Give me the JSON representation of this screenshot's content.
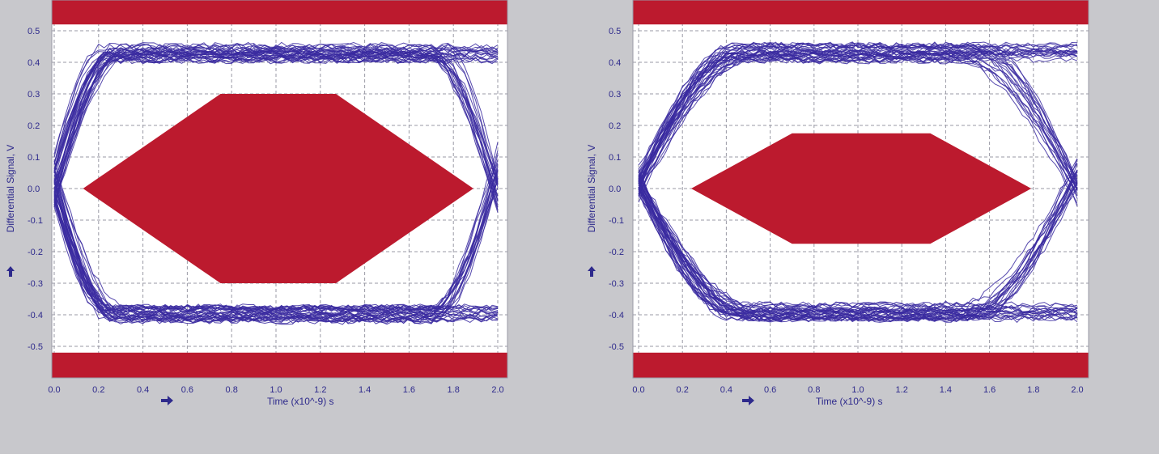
{
  "colors": {
    "panel_bg": "#c8c8cc",
    "plot_bg": "#ffffff",
    "grid": "#9a9aa6",
    "axis_text": "#2e2a8c",
    "trace": "#3a2aa0",
    "mask": "#bc1a2e"
  },
  "icons": {
    "x_marker": "arrow-right-icon",
    "y_marker": "arrow-up-icon"
  },
  "chart_data": [
    {
      "type": "eye-diagram",
      "xlabel": "Time  (x10^-9) s",
      "ylabel": "Differential Signal, V",
      "xlim": [
        0.0,
        2.0
      ],
      "ylim": [
        -0.55,
        0.55
      ],
      "x_ticks": [
        "0.0",
        "0.2",
        "0.4",
        "0.6",
        "0.8",
        "1.0",
        "1.2",
        "1.4",
        "1.6",
        "1.8",
        "2.0"
      ],
      "y_ticks": [
        "0.5",
        "0.4",
        "0.3",
        "0.2",
        "0.1",
        "0.0",
        "-0.1",
        "-0.2",
        "-0.3",
        "-0.4",
        "-0.5"
      ],
      "grid": true,
      "signal": {
        "high_level": 0.43,
        "low_level": -0.4,
        "crossing_left": 0.0,
        "crossing_right": 1.98,
        "transition_width": 0.55
      },
      "mask": {
        "top_band_from": 0.52,
        "bottom_band_to": -0.52,
        "polygon": [
          [
            0.13,
            0.0
          ],
          [
            0.75,
            0.3
          ],
          [
            1.27,
            0.3
          ],
          [
            1.89,
            0.0
          ],
          [
            1.27,
            -0.3
          ],
          [
            0.75,
            -0.3
          ]
        ]
      }
    },
    {
      "type": "eye-diagram",
      "xlabel": "Time  (x10^-9) s",
      "ylabel": "Differential Signal, V",
      "xlim": [
        0.0,
        2.0
      ],
      "ylim": [
        -0.55,
        0.55
      ],
      "x_ticks": [
        "0.0",
        "0.2",
        "0.4",
        "0.6",
        "0.8",
        "1.0",
        "1.2",
        "1.4",
        "1.6",
        "1.8",
        "2.0"
      ],
      "y_ticks": [
        "0.5",
        "0.4",
        "0.3",
        "0.2",
        "0.1",
        "0.0",
        "-0.1",
        "-0.2",
        "-0.3",
        "-0.4",
        "-0.5"
      ],
      "grid": true,
      "signal": {
        "high_level": 0.43,
        "low_level": -0.39,
        "crossing_left": 0.0,
        "crossing_right": 1.98,
        "transition_width": 0.95
      },
      "mask": {
        "top_band_from": 0.52,
        "bottom_band_to": -0.52,
        "polygon": [
          [
            0.24,
            0.0
          ],
          [
            0.7,
            0.175
          ],
          [
            1.33,
            0.175
          ],
          [
            1.79,
            0.0
          ],
          [
            1.33,
            -0.175
          ],
          [
            0.7,
            -0.175
          ]
        ]
      }
    }
  ]
}
